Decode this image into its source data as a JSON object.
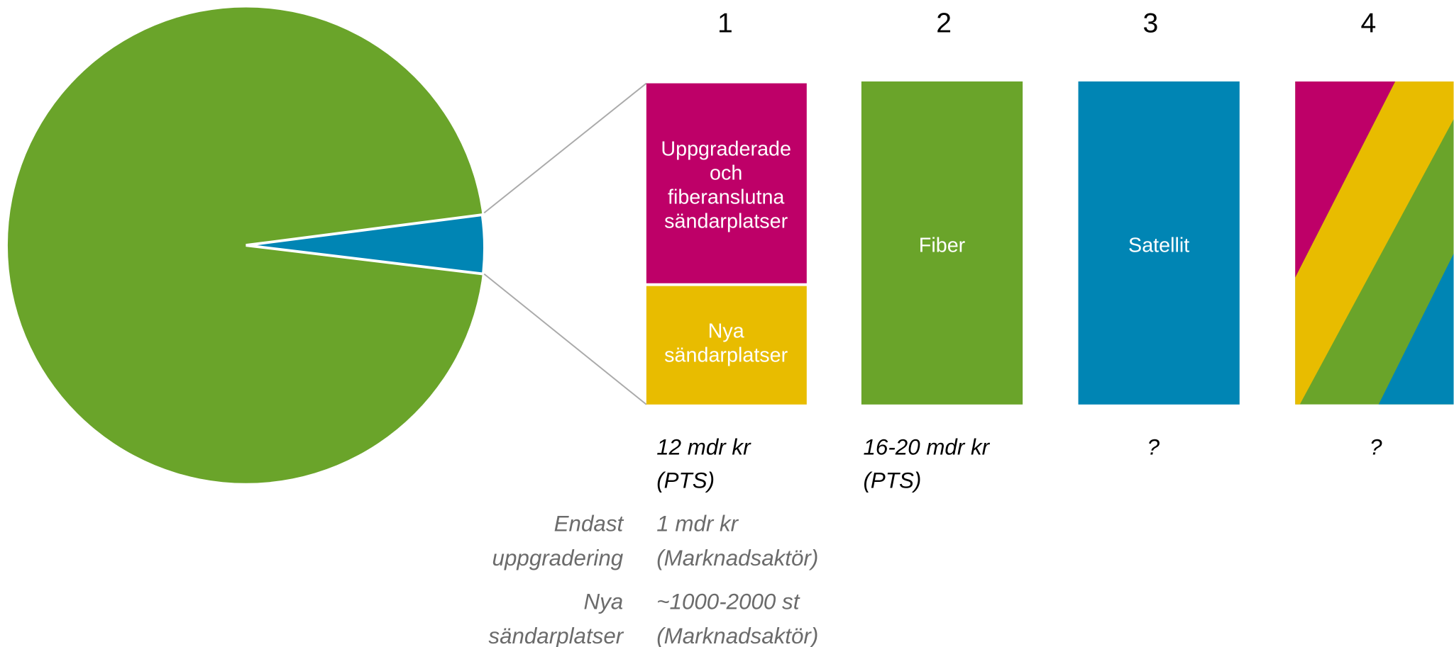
{
  "columns": [
    {
      "number": "1",
      "boxes": [
        [
          "Uppgraderade",
          "och",
          "fiberanslutna",
          "sändarplatser"
        ],
        [
          "Nya",
          "sändarplatser"
        ]
      ],
      "cost": [
        "12 mdr kr",
        "(PTS)"
      ]
    },
    {
      "number": "2",
      "boxes": [
        [
          "Fiber"
        ]
      ],
      "cost": [
        "16-20 mdr kr",
        "(PTS)"
      ]
    },
    {
      "number": "3",
      "boxes": [
        [
          "Satellit"
        ]
      ],
      "cost": [
        "?"
      ]
    },
    {
      "number": "4",
      "cost": [
        "?"
      ]
    }
  ],
  "notes": [
    {
      "label": [
        "Endast",
        "uppgradering"
      ],
      "value": [
        "1 mdr kr",
        "(Marknadsaktör)"
      ]
    },
    {
      "label": [
        "Nya",
        "sändarplatser"
      ],
      "value": [
        "~1000-2000 st",
        "(Marknadsaktör)"
      ]
    }
  ]
}
